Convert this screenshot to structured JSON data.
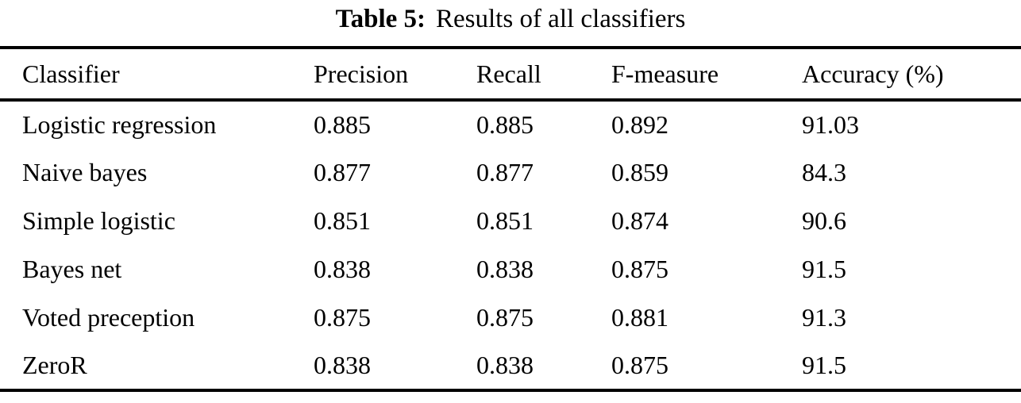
{
  "caption": {
    "label": "Table 5:",
    "text": "Results of all classifiers"
  },
  "table": {
    "headers": [
      "Classifier",
      "Precision",
      "Recall",
      "F-measure",
      "Accuracy (%)"
    ],
    "rows": [
      [
        "Logistic regression",
        "0.885",
        "0.885",
        "0.892",
        "91.03"
      ],
      [
        "Naive bayes",
        "0.877",
        "0.877",
        "0.859",
        "84.3"
      ],
      [
        "Simple logistic",
        "0.851",
        "0.851",
        "0.874",
        "90.6"
      ],
      [
        "Bayes net",
        "0.838",
        "0.838",
        "0.875",
        "91.5"
      ],
      [
        "Voted preception",
        "0.875",
        "0.875",
        "0.881",
        "91.3"
      ],
      [
        "ZeroR",
        "0.838",
        "0.838",
        "0.875",
        "91.5"
      ]
    ]
  },
  "colors": {
    "background": "#ffffff",
    "text": "#000000",
    "rule": "#000000"
  }
}
